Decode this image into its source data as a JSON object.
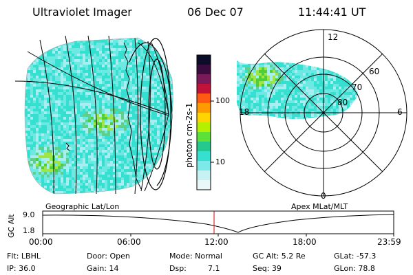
{
  "header": {
    "instrument": "Ultraviolet Imager",
    "date": "06 Dec 07",
    "time": "11:44:41 UT"
  },
  "colorbar": {
    "label": "photon cm-2s-1",
    "ticks": [
      "100",
      "10"
    ],
    "colors": [
      "#0b0b2a",
      "#3a0b3f",
      "#7a1a5a",
      "#c2123a",
      "#ff5a14",
      "#ff9b00",
      "#ffd400",
      "#b4f000",
      "#5de13a",
      "#25c98d",
      "#35e0d0",
      "#7de9e8",
      "#c7f2f4",
      "#eaf7f8"
    ]
  },
  "left_map": {
    "caption": "Geographic Lat/Lon",
    "intensity_levels": [
      "#35e0d0",
      "#6ee8e2",
      "#a8eef0",
      "#5fd08a",
      "#4ecf3a",
      "#9fe54a"
    ]
  },
  "right_map": {
    "caption": "Apex MLat/MLT",
    "hour_labels": [
      "12",
      "18",
      "6",
      "0"
    ],
    "lat_labels": [
      "80",
      "70",
      "60"
    ]
  },
  "timeline": {
    "ylabel": "GC Alt",
    "yticks": [
      "9.0",
      "1.8"
    ],
    "xticks": [
      "00:00",
      "06:00",
      "12:00",
      "18:00",
      "23:59"
    ],
    "current_marker_time": "11:44"
  },
  "info": {
    "filter": "Flt: LBHL",
    "ip": "IP: 36.0",
    "door": "Door: Open",
    "gain": "Gain: 14",
    "mode": "Mode: Normal",
    "dsp_label": "Dsp:",
    "dsp_value": "7.1",
    "gc_alt": "GC Alt: 5.2 Re",
    "seq": "Seq: 39",
    "glat": "GLat: -57.3",
    "glon": "GLon: 78.8"
  }
}
